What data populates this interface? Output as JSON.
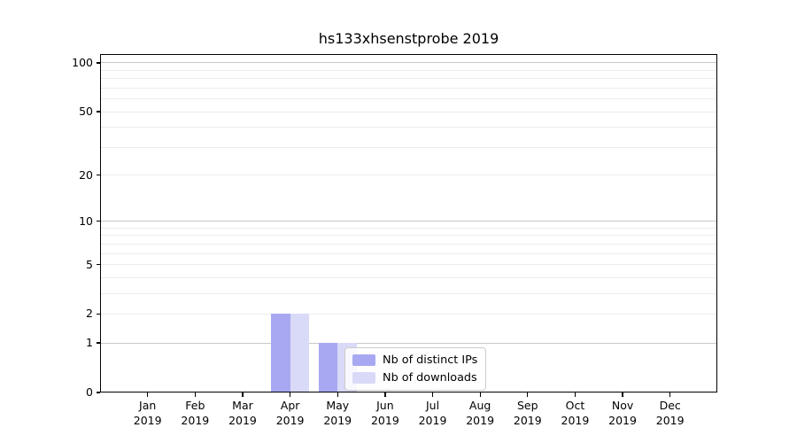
{
  "figure": {
    "background": "#ffffff"
  },
  "chart_data": {
    "type": "bar",
    "title": "hs133xhsenstprobe 2019",
    "categories": [
      {
        "month": "Jan",
        "year": "2019"
      },
      {
        "month": "Feb",
        "year": "2019"
      },
      {
        "month": "Mar",
        "year": "2019"
      },
      {
        "month": "Apr",
        "year": "2019"
      },
      {
        "month": "May",
        "year": "2019"
      },
      {
        "month": "Jun",
        "year": "2019"
      },
      {
        "month": "Jul",
        "year": "2019"
      },
      {
        "month": "Aug",
        "year": "2019"
      },
      {
        "month": "Sep",
        "year": "2019"
      },
      {
        "month": "Oct",
        "year": "2019"
      },
      {
        "month": "Nov",
        "year": "2019"
      },
      {
        "month": "Dec",
        "year": "2019"
      }
    ],
    "series": [
      {
        "name": "Nb of distinct IPs",
        "color": "#a8a8f2",
        "values": [
          0,
          0,
          0,
          2,
          1,
          0,
          0,
          0,
          0,
          0,
          0,
          0
        ]
      },
      {
        "name": "Nb of downloads",
        "color": "#d9d9f8",
        "values": [
          0,
          0,
          0,
          2,
          1,
          0,
          0,
          0,
          0,
          0,
          0,
          0
        ]
      }
    ],
    "yaxis": {
      "scale": "log10(1+v)",
      "ylim": [
        0,
        113
      ],
      "tick_values": [
        0,
        1,
        2,
        5,
        10,
        20,
        50,
        100
      ],
      "tick_labels": [
        "0",
        "1",
        "2",
        "5",
        "10",
        "20",
        "50",
        "100"
      ]
    },
    "grid": {
      "enabled": true,
      "major_values": [
        1,
        10,
        100
      ],
      "minor_values": [
        2,
        3,
        4,
        5,
        6,
        7,
        8,
        9,
        20,
        30,
        40,
        50,
        60,
        70,
        80,
        90
      ],
      "major_color": "#c9c9c9",
      "minor_color": "#ececec"
    },
    "legend": {
      "position": "lower-center-right"
    },
    "axis_color": "#000000"
  }
}
